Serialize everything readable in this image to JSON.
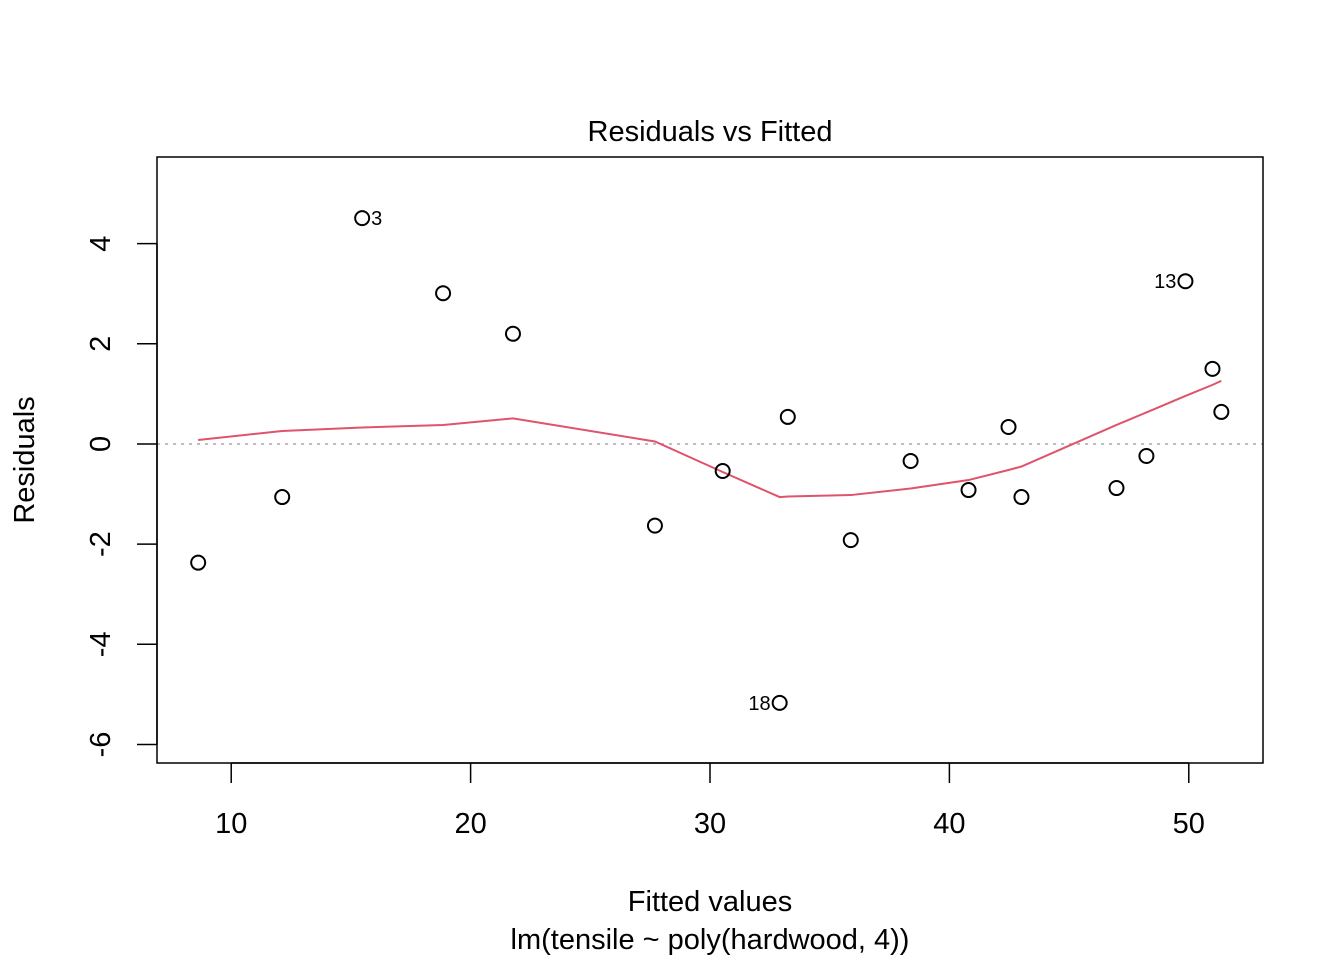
{
  "chart_data": {
    "type": "scatter",
    "title": "Residuals vs Fitted",
    "xlabel": "Fitted values",
    "subtitle": "lm(tensile ~ poly(hardwood, 4))",
    "ylabel": "Residuals",
    "xlim": [
      6.9,
      53.1
    ],
    "ylim": [
      -6.37,
      5.73
    ],
    "xticks": [
      10,
      20,
      30,
      40,
      50
    ],
    "xtick_labels": [
      "10",
      "20",
      "30",
      "40",
      "50"
    ],
    "yticks": [
      -6,
      -4,
      -2,
      0,
      2,
      4
    ],
    "ytick_labels": [
      "-6",
      "-4",
      "-2",
      "0",
      "2",
      "4"
    ],
    "grid": false,
    "points": [
      {
        "x": 8.62,
        "y": -2.37
      },
      {
        "x": 12.13,
        "y": -1.06
      },
      {
        "x": 15.47,
        "y": 4.51,
        "label": "3",
        "label_side": "right"
      },
      {
        "x": 18.85,
        "y": 3.01
      },
      {
        "x": 21.77,
        "y": 2.2
      },
      {
        "x": 27.7,
        "y": -1.63
      },
      {
        "x": 30.53,
        "y": -0.54
      },
      {
        "x": 32.91,
        "y": -5.17,
        "label": "18",
        "label_side": "left"
      },
      {
        "x": 33.25,
        "y": 0.54
      },
      {
        "x": 35.88,
        "y": -1.92
      },
      {
        "x": 38.38,
        "y": -0.34
      },
      {
        "x": 40.8,
        "y": -0.92
      },
      {
        "x": 42.47,
        "y": 0.34
      },
      {
        "x": 43.01,
        "y": -1.06
      },
      {
        "x": 46.98,
        "y": -0.88
      },
      {
        "x": 48.23,
        "y": -0.24
      },
      {
        "x": 49.86,
        "y": 3.25,
        "label": "13",
        "label_side": "left"
      },
      {
        "x": 50.99,
        "y": 1.5
      },
      {
        "x": 51.36,
        "y": 0.64
      }
    ],
    "smooth_line": {
      "color": "#DF536B",
      "x": [
        8.62,
        12.13,
        15.47,
        18.85,
        21.77,
        27.7,
        30.53,
        32.91,
        33.25,
        35.88,
        38.38,
        40.8,
        42.47,
        43.01,
        46.98,
        48.23,
        49.86,
        50.99,
        51.36
      ],
      "y": [
        0.08,
        0.26,
        0.33,
        0.38,
        0.51,
        0.05,
        -0.56,
        -1.06,
        -1.05,
        -1.02,
        -0.89,
        -0.72,
        -0.52,
        -0.45,
        0.38,
        0.63,
        0.96,
        1.18,
        1.26
      ]
    },
    "reference_line": {
      "y": 0,
      "color": "#BEBEBE",
      "style": "dotted"
    }
  }
}
